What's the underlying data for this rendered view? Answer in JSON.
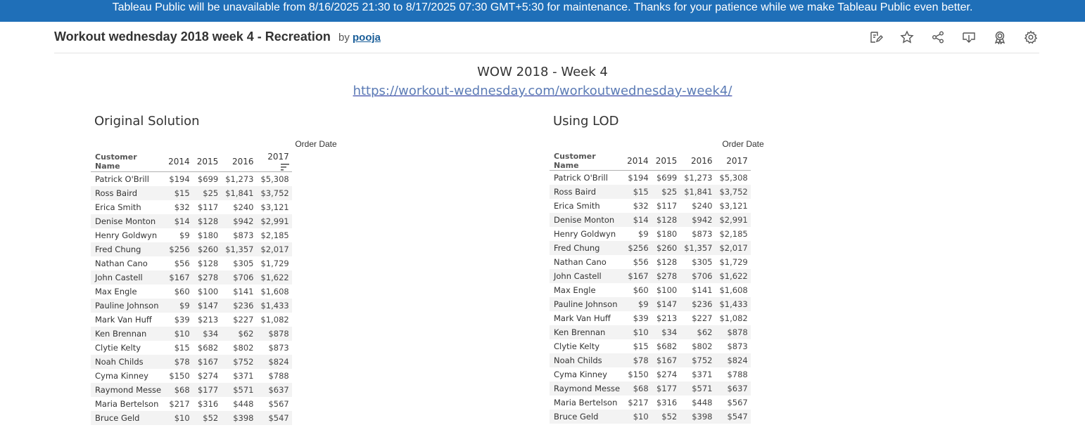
{
  "banner": {
    "text": "Tableau Public will be unavailable from 8/16/2025 21:30 to 8/17/2025 07:30 GMT+5:30 for maintenance. Thanks for your patience while we make Tableau Public even better."
  },
  "header": {
    "title": "Workout wednesday 2018 week 4 - Recreation",
    "by": "by",
    "author": "pooja",
    "toolbar": [
      {
        "name": "edit-icon"
      },
      {
        "name": "favorite-star-icon"
      },
      {
        "name": "share-icon"
      },
      {
        "name": "download-icon"
      },
      {
        "name": "badge-icon"
      },
      {
        "name": "settings-gear-icon"
      }
    ]
  },
  "dashboard": {
    "title": "WOW 2018 - Week 4",
    "link": "https://workout-wednesday.com/workoutwednesday-week4/"
  },
  "colors": {
    "banner": "#1f6fb8",
    "link": "#5b7bb5",
    "row_alt": "#f3f3f3"
  },
  "tables": {
    "left": {
      "title": "Original Solution",
      "super_header": "Order Date",
      "name_header": "Customer Name",
      "years": [
        "2014",
        "2015",
        "2016",
        "2017"
      ],
      "sort_icon": "sort-descending-icon"
    },
    "right": {
      "title": "Using LOD",
      "super_header": "Order Date",
      "name_header": "Customer Name",
      "years": [
        "2014",
        "2015",
        "2016",
        "2017"
      ]
    }
  },
  "rows": [
    {
      "name": "Patrick O'Brill",
      "v": [
        "$194",
        "$699",
        "$1,273",
        "$5,308"
      ]
    },
    {
      "name": "Ross Baird",
      "v": [
        "$15",
        "$25",
        "$1,841",
        "$3,752"
      ]
    },
    {
      "name": "Erica Smith",
      "v": [
        "$32",
        "$117",
        "$240",
        "$3,121"
      ]
    },
    {
      "name": "Denise Monton",
      "v": [
        "$14",
        "$128",
        "$942",
        "$2,991"
      ]
    },
    {
      "name": "Henry Goldwyn",
      "v": [
        "$9",
        "$180",
        "$873",
        "$2,185"
      ]
    },
    {
      "name": "Fred Chung",
      "v": [
        "$256",
        "$260",
        "$1,357",
        "$2,017"
      ]
    },
    {
      "name": "Nathan Cano",
      "v": [
        "$56",
        "$128",
        "$305",
        "$1,729"
      ]
    },
    {
      "name": "John Castell",
      "v": [
        "$167",
        "$278",
        "$706",
        "$1,622"
      ]
    },
    {
      "name": "Max Engle",
      "v": [
        "$60",
        "$100",
        "$141",
        "$1,608"
      ]
    },
    {
      "name": "Pauline Johnson",
      "v": [
        "$9",
        "$147",
        "$236",
        "$1,433"
      ]
    },
    {
      "name": "Mark Van Huff",
      "v": [
        "$39",
        "$213",
        "$227",
        "$1,082"
      ]
    },
    {
      "name": "Ken Brennan",
      "v": [
        "$10",
        "$34",
        "$62",
        "$878"
      ]
    },
    {
      "name": "Clytie Kelty",
      "v": [
        "$15",
        "$682",
        "$802",
        "$873"
      ]
    },
    {
      "name": "Noah Childs",
      "v": [
        "$78",
        "$167",
        "$752",
        "$824"
      ]
    },
    {
      "name": "Cyma Kinney",
      "v": [
        "$150",
        "$274",
        "$371",
        "$788"
      ]
    },
    {
      "name": "Raymond Messe",
      "v": [
        "$68",
        "$177",
        "$571",
        "$637"
      ]
    },
    {
      "name": "Maria Bertelson",
      "v": [
        "$217",
        "$316",
        "$448",
        "$567"
      ]
    },
    {
      "name": "Bruce Geld",
      "v": [
        "$10",
        "$52",
        "$398",
        "$547"
      ]
    }
  ]
}
